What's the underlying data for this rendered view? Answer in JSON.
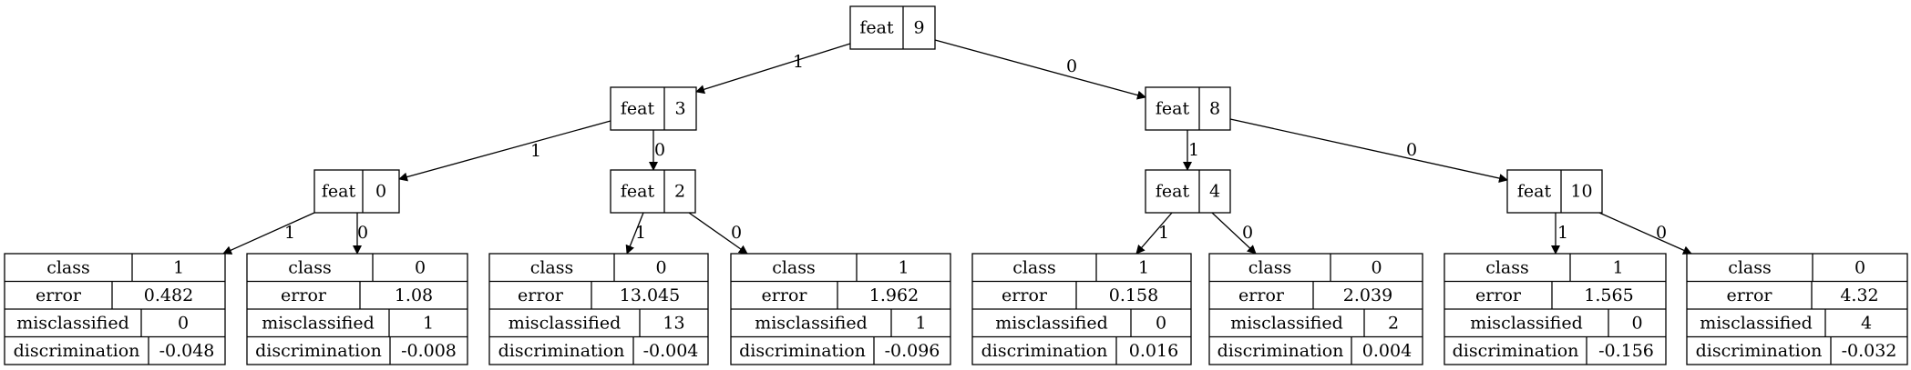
{
  "tree": {
    "internal_nodes": [
      {
        "id": "n9",
        "label": "feat",
        "value": "9"
      },
      {
        "id": "n3",
        "label": "feat",
        "value": "3"
      },
      {
        "id": "n8",
        "label": "feat",
        "value": "8"
      },
      {
        "id": "n0",
        "label": "feat",
        "value": "0"
      },
      {
        "id": "n2",
        "label": "feat",
        "value": "2"
      },
      {
        "id": "n4",
        "label": "feat",
        "value": "4"
      },
      {
        "id": "n10",
        "label": "feat",
        "value": "10"
      }
    ],
    "leaf_row_labels": [
      "class",
      "error",
      "misclassified",
      "discrimination"
    ],
    "leaves": [
      {
        "id": "L1",
        "class": "1",
        "error": "0.482",
        "misclassified": "0",
        "discrimination": "-0.048"
      },
      {
        "id": "L2",
        "class": "0",
        "error": "1.08",
        "misclassified": "1",
        "discrimination": "-0.008"
      },
      {
        "id": "L3",
        "class": "0",
        "error": "13.045",
        "misclassified": "13",
        "discrimination": "-0.004"
      },
      {
        "id": "L4",
        "class": "1",
        "error": "1.962",
        "misclassified": "1",
        "discrimination": "-0.096"
      },
      {
        "id": "L5",
        "class": "1",
        "error": "0.158",
        "misclassified": "0",
        "discrimination": "0.016"
      },
      {
        "id": "L6",
        "class": "0",
        "error": "2.039",
        "misclassified": "2",
        "discrimination": "0.004"
      },
      {
        "id": "L7",
        "class": "1",
        "error": "1.565",
        "misclassified": "0",
        "discrimination": "-0.156"
      },
      {
        "id": "L8",
        "class": "0",
        "error": "4.32",
        "misclassified": "4",
        "discrimination": "-0.032"
      }
    ],
    "edges": [
      {
        "from": "n9",
        "to": "n3",
        "label": "1"
      },
      {
        "from": "n9",
        "to": "n8",
        "label": "0"
      },
      {
        "from": "n3",
        "to": "n0",
        "label": "1"
      },
      {
        "from": "n3",
        "to": "n2",
        "label": "0"
      },
      {
        "from": "n8",
        "to": "n4",
        "label": "1"
      },
      {
        "from": "n8",
        "to": "n10",
        "label": "0"
      },
      {
        "from": "n0",
        "to": "L1",
        "label": "1"
      },
      {
        "from": "n0",
        "to": "L2",
        "label": "0"
      },
      {
        "from": "n2",
        "to": "L3",
        "label": "1"
      },
      {
        "from": "n2",
        "to": "L4",
        "label": "0"
      },
      {
        "from": "n4",
        "to": "L5",
        "label": "1"
      },
      {
        "from": "n4",
        "to": "L6",
        "label": "0"
      },
      {
        "from": "n10",
        "to": "L7",
        "label": "1"
      },
      {
        "from": "n10",
        "to": "L8",
        "label": "0"
      }
    ]
  }
}
